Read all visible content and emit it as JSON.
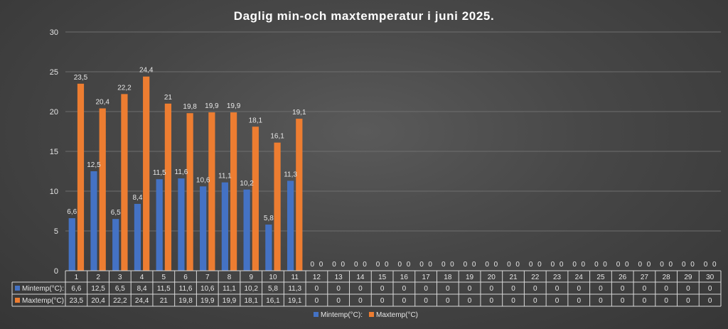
{
  "chart_data": {
    "type": "bar",
    "title": "Daglig min-och maxtemperatur i juni 2025.",
    "xlabel": "",
    "ylabel": "",
    "ylim": [
      0,
      30
    ],
    "yticks": [
      0,
      5,
      10,
      15,
      20,
      25,
      30
    ],
    "grid": true,
    "legend_position": "bottom",
    "categories": [
      "1",
      "2",
      "3",
      "4",
      "5",
      "6",
      "7",
      "8",
      "9",
      "10",
      "11",
      "12",
      "13",
      "14",
      "15",
      "16",
      "17",
      "18",
      "19",
      "20",
      "21",
      "22",
      "23",
      "24",
      "25",
      "26",
      "27",
      "28",
      "29",
      "30"
    ],
    "series": [
      {
        "name": "Mintemp(°C):",
        "color": "#4472c4",
        "values": [
          6.6,
          12.5,
          6.5,
          8.4,
          11.5,
          11.6,
          10.6,
          11.1,
          10.2,
          5.8,
          11.3,
          0,
          0,
          0,
          0,
          0,
          0,
          0,
          0,
          0,
          0,
          0,
          0,
          0,
          0,
          0,
          0,
          0,
          0,
          0
        ],
        "labels": [
          "6,6",
          "12,5",
          "6,5",
          "8,4",
          "11,5",
          "11,6",
          "10,6",
          "11,1",
          "10,2",
          "5,8",
          "11,3",
          "0",
          "0",
          "0",
          "0",
          "0",
          "0",
          "0",
          "0",
          "0",
          "0",
          "0",
          "0",
          "0",
          "0",
          "0",
          "0",
          "0",
          "0",
          "0"
        ]
      },
      {
        "name": "Maxtemp(°C)",
        "color": "#ed7d31",
        "values": [
          23.5,
          20.4,
          22.2,
          24.4,
          21,
          19.8,
          19.9,
          19.9,
          18.1,
          16.1,
          19.1,
          0,
          0,
          0,
          0,
          0,
          0,
          0,
          0,
          0,
          0,
          0,
          0,
          0,
          0,
          0,
          0,
          0,
          0,
          0
        ],
        "labels": [
          "23,5",
          "20,4",
          "22,2",
          "24,4",
          "21",
          "19,8",
          "19,9",
          "19,9",
          "18,1",
          "16,1",
          "19,1",
          "0",
          "0",
          "0",
          "0",
          "0",
          "0",
          "0",
          "0",
          "0",
          "0",
          "0",
          "0",
          "0",
          "0",
          "0",
          "0",
          "0",
          "0",
          "0"
        ]
      }
    ],
    "legend": [
      "Mintemp(°C):",
      "Maxtemp(°C)"
    ]
  }
}
